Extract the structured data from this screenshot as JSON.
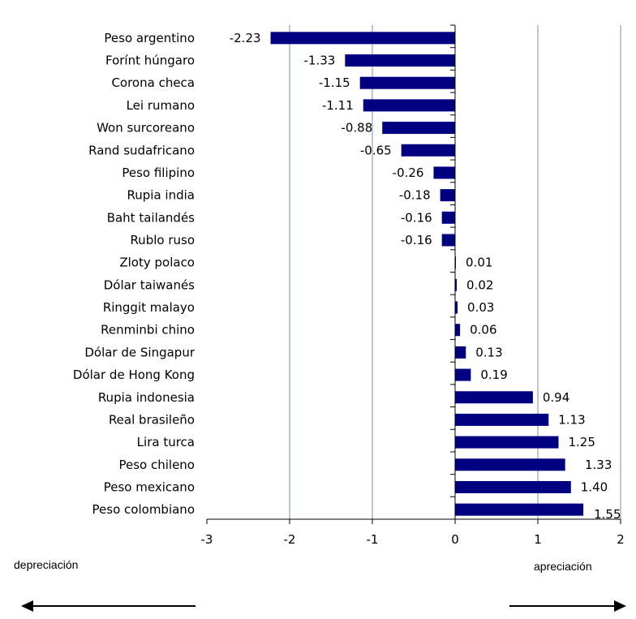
{
  "chart_data": {
    "type": "bar",
    "orientation": "horizontal",
    "categories": [
      "Peso argentino",
      "Forínt húngaro",
      "Corona checa",
      "Lei rumano",
      "Won surcoreano",
      "Rand sudafricano",
      "Peso filipino",
      "Rupia india",
      "Baht tailandés",
      "Rublo ruso",
      "Zloty polaco",
      "Dólar taiwanés",
      "Ringgit malayo",
      "Renminbi chino",
      "Dólar de Singapur",
      "Dólar de Hong Kong",
      "Rupia indonesia",
      "Real brasileño",
      "Lira turca",
      "Peso chileno",
      "Peso mexicano",
      "Peso colombiano"
    ],
    "values": [
      -2.23,
      -1.33,
      -1.15,
      -1.11,
      -0.88,
      -0.65,
      -0.26,
      -0.18,
      -0.16,
      -0.16,
      0.01,
      0.02,
      0.03,
      0.06,
      0.13,
      0.19,
      0.94,
      1.13,
      1.25,
      1.33,
      1.4,
      1.55
    ],
    "value_labels": [
      "-2.23",
      "-1.33",
      "-1.15",
      "-1.11",
      "-0.88",
      "-0.65",
      "-0.26",
      "-0.18",
      "-0.16",
      "-0.16",
      "0.01",
      "0.02",
      "0.03",
      "0.06",
      "0.13",
      "0.19",
      "0.94",
      "1.13",
      "1.25",
      "1.33",
      "1.40",
      "1.55"
    ],
    "xlim": [
      -3,
      2
    ],
    "xticks": [
      -3,
      -2,
      -1,
      0,
      1,
      2
    ],
    "xtick_labels": [
      "-3",
      "-2",
      "-1",
      "0",
      "1",
      "2"
    ],
    "grid": true,
    "bar_color": "#000080",
    "grid_color": "#b8c8d8"
  },
  "annotations": {
    "left_label": "depreciación",
    "right_label": "apreciación"
  }
}
